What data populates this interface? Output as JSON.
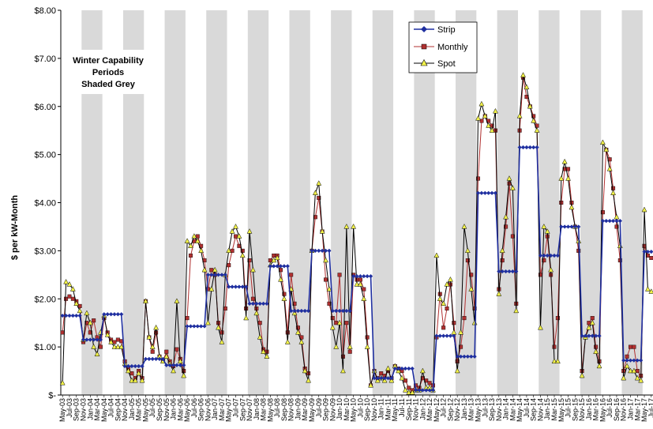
{
  "chart_data": {
    "type": "line",
    "ylabel": "$ per kW-Month",
    "ylim": [
      0,
      8
    ],
    "y_ticks": [
      {
        "value": 0,
        "label": "$-"
      },
      {
        "value": 1,
        "label": "$1.00"
      },
      {
        "value": 2,
        "label": "$2.00"
      },
      {
        "value": 3,
        "label": "$3.00"
      },
      {
        "value": 4,
        "label": "$4.00"
      },
      {
        "value": 5,
        "label": "$5.00"
      },
      {
        "value": 6,
        "label": "$6.00"
      },
      {
        "value": 7,
        "label": "$7.00"
      },
      {
        "value": 8,
        "label": "$8.00"
      }
    ],
    "x_start": {
      "year": 2003,
      "month": 5
    },
    "x_months": 171,
    "shading_note": [
      "Winter Capability",
      "Periods",
      "Shaded Grey"
    ],
    "shaded_periods": "Nov-Apr each year",
    "grid": false,
    "legend_position": "top-center",
    "series": [
      {
        "name": "Strip",
        "color": "#1f2fa0",
        "marker": "diamond",
        "segments": [
          {
            "from": "2003-05",
            "to": "2003-10",
            "value": 1.65
          },
          {
            "from": "2003-11",
            "to": "2004-04",
            "value": 1.15
          },
          {
            "from": "2004-05",
            "to": "2004-10",
            "value": 1.68
          },
          {
            "from": "2004-11",
            "to": "2005-04",
            "value": 0.6
          },
          {
            "from": "2005-05",
            "to": "2005-10",
            "value": 0.75
          },
          {
            "from": "2005-11",
            "to": "2006-04",
            "value": 0.62
          },
          {
            "from": "2006-05",
            "to": "2006-10",
            "value": 1.43
          },
          {
            "from": "2006-11",
            "to": "2007-04",
            "value": 2.5
          },
          {
            "from": "2007-05",
            "to": "2007-10",
            "value": 2.25
          },
          {
            "from": "2007-11",
            "to": "2008-04",
            "value": 1.9
          },
          {
            "from": "2008-05",
            "to": "2008-10",
            "value": 2.68
          },
          {
            "from": "2008-11",
            "to": "2009-04",
            "value": 1.75
          },
          {
            "from": "2009-05",
            "to": "2009-10",
            "value": 3.0
          },
          {
            "from": "2009-11",
            "to": "2010-04",
            "value": 1.75
          },
          {
            "from": "2010-05",
            "to": "2010-10",
            "value": 2.47
          },
          {
            "from": "2010-11",
            "to": "2011-04",
            "value": 0.35
          },
          {
            "from": "2011-05",
            "to": "2011-10",
            "value": 0.55
          },
          {
            "from": "2011-11",
            "to": "2012-04",
            "value": 0.1
          },
          {
            "from": "2012-05",
            "to": "2012-10",
            "value": 1.23
          },
          {
            "from": "2012-11",
            "to": "2013-04",
            "value": 0.8
          },
          {
            "from": "2013-05",
            "to": "2013-10",
            "value": 4.2
          },
          {
            "from": "2013-11",
            "to": "2014-04",
            "value": 2.57
          },
          {
            "from": "2014-05",
            "to": "2014-10",
            "value": 5.15
          },
          {
            "from": "2014-11",
            "to": "2015-04",
            "value": 2.9
          },
          {
            "from": "2015-05",
            "to": "2015-10",
            "value": 3.5
          },
          {
            "from": "2015-11",
            "to": "2016-04",
            "value": 1.23
          },
          {
            "from": "2016-05",
            "to": "2016-10",
            "value": 3.62
          },
          {
            "from": "2016-11",
            "to": "2017-04",
            "value": 0.72
          },
          {
            "from": "2017-05",
            "to": "2017-07",
            "value": 2.98
          }
        ]
      },
      {
        "name": "Monthly",
        "color": "#b03030",
        "marker": "square",
        "base_values": [
          1.3,
          2.0,
          2.05,
          2.0,
          1.95,
          1.85,
          1.1,
          1.5,
          1.3,
          1.55,
          1.2,
          1.0,
          1.6,
          1.3,
          1.15,
          1.1,
          1.15,
          1.12,
          0.7,
          0.55,
          0.45,
          0.35,
          0.5,
          0.35,
          1.95,
          1.2,
          0.9,
          1.3,
          0.8,
          0.7,
          0.9,
          0.7,
          0.6,
          0.95,
          0.75,
          0.5,
          1.6,
          2.9,
          3.2,
          3.3,
          3.1,
          2.8,
          2.2,
          2.6,
          2.5,
          1.5,
          1.3,
          1.8,
          2.7,
          3.0,
          3.3,
          3.1,
          3.0,
          1.8,
          2.8,
          2.0,
          1.8,
          1.5,
          0.95,
          0.9,
          2.8,
          2.9,
          2.9,
          2.6,
          2.1,
          1.3,
          2.5,
          1.9,
          1.4,
          1.2,
          0.55,
          0.45,
          3.0,
          3.7,
          4.1,
          3.4,
          2.4,
          1.9,
          1.6,
          1.5,
          2.5,
          0.8,
          1.5,
          0.9,
          2.5,
          2.4,
          2.4,
          2.2,
          1.2,
          0.2,
          0.5,
          0.35,
          0.45,
          0.4,
          0.5,
          0.35,
          0.6,
          0.55,
          0.5,
          0.3,
          0.15,
          0.1,
          0.2,
          0.15,
          0.35,
          0.3,
          0.25,
          0.2,
          1.2,
          2.1,
          1.4,
          1.8,
          2.3,
          1.5,
          0.7,
          1.0,
          1.6,
          2.8,
          2.5,
          1.8,
          4.5,
          5.7,
          5.8,
          5.7,
          5.6,
          5.5,
          2.2,
          2.8,
          3.5,
          4.4,
          3.3,
          1.9,
          5.5,
          6.6,
          6.2,
          6.0,
          5.8,
          5.6,
          2.5,
          2.8,
          3.3,
          2.5,
          1.0,
          1.6,
          4.0,
          4.7,
          4.7,
          4.0,
          3.5,
          3.0,
          0.5,
          1.2,
          1.5,
          1.6,
          1.0,
          0.7,
          3.8,
          5.1,
          4.9,
          4.3,
          3.5,
          2.8,
          0.5,
          0.8,
          1.0,
          1.0,
          0.5,
          0.4,
          3.1,
          2.9,
          2.85,
          2.7,
          2.55
        ]
      },
      {
        "name": "Spot",
        "color": "#000000",
        "marker": "triangle",
        "base_values": [
          0.25,
          2.35,
          2.3,
          2.2,
          1.9,
          1.75,
          1.15,
          1.7,
          1.5,
          1.0,
          0.85,
          1.3,
          1.65,
          1.25,
          1.1,
          1.0,
          1.0,
          1.0,
          0.65,
          0.5,
          0.3,
          0.3,
          0.45,
          0.3,
          1.95,
          1.2,
          1.0,
          1.4,
          0.8,
          0.7,
          0.8,
          0.65,
          0.5,
          1.95,
          0.7,
          0.4,
          3.2,
          3.1,
          3.3,
          3.2,
          3.0,
          2.6,
          1.5,
          2.2,
          2.6,
          1.4,
          1.1,
          2.5,
          3.0,
          3.4,
          3.5,
          3.3,
          2.9,
          1.6,
          3.4,
          2.6,
          1.7,
          1.2,
          0.9,
          0.8,
          2.7,
          2.8,
          2.85,
          2.4,
          2.0,
          1.1,
          2.2,
          1.7,
          1.3,
          1.1,
          0.5,
          0.3,
          3.0,
          4.2,
          4.4,
          3.4,
          2.8,
          2.2,
          1.4,
          1.0,
          1.5,
          0.5,
          3.5,
          1.0,
          3.5,
          2.3,
          2.3,
          2.0,
          1.0,
          0.2,
          0.5,
          0.3,
          0.35,
          0.3,
          0.55,
          0.3,
          0.6,
          0.5,
          0.35,
          0.1,
          0.05,
          0.05,
          0.1,
          0.1,
          0.5,
          0.15,
          0.15,
          0.1,
          2.9,
          2.0,
          1.9,
          2.3,
          2.4,
          1.3,
          0.5,
          1.3,
          3.5,
          3.0,
          2.2,
          1.5,
          5.75,
          6.05,
          5.8,
          5.6,
          5.5,
          5.9,
          2.1,
          3.0,
          3.7,
          4.5,
          4.3,
          1.75,
          5.8,
          6.65,
          6.4,
          6.0,
          5.7,
          5.5,
          1.4,
          3.5,
          3.4,
          2.6,
          0.7,
          0.7,
          4.5,
          4.85,
          4.5,
          3.9,
          3.5,
          3.2,
          0.4,
          1.2,
          1.4,
          1.5,
          0.9,
          0.6,
          5.25,
          5.1,
          4.7,
          4.2,
          3.7,
          3.1,
          0.35,
          0.6,
          0.5,
          0.5,
          0.35,
          0.3,
          3.85,
          2.2,
          2.15,
          2.1,
          1.85
        ]
      }
    ]
  }
}
